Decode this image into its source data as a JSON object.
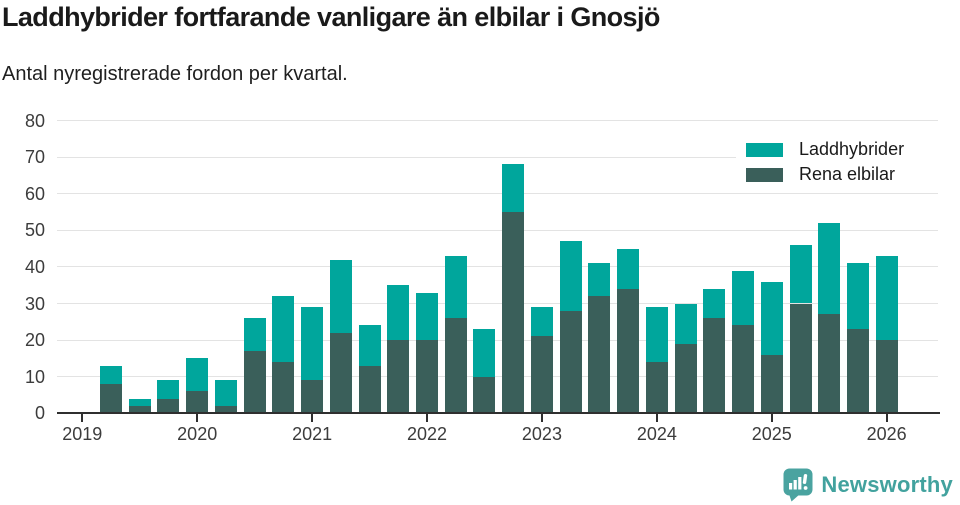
{
  "title": "Laddhybrider fortfarande vanligare än elbilar i Gnosjö",
  "subtitle": "Antal nyregistrerade fordon per kvartal.",
  "legend": [
    {
      "label": "Laddhybrider",
      "color": "#00a69c"
    },
    {
      "label": "Rena elbilar",
      "color": "#3a5f5a"
    }
  ],
  "footer": {
    "brand": "Newsworthy",
    "brand_color": "#42a29e",
    "logo_icon": "speech-bubble-bar-chart"
  },
  "colors": {
    "laddhybrider": "#00a69c",
    "rena_elbilar": "#3a5f5a",
    "gridline": "#e3e3e3",
    "axis": "#2f2f2f",
    "text": "#1a1a1a"
  },
  "chart_data": {
    "type": "bar",
    "stacked": true,
    "title": "Laddhybrider fortfarande vanligare än elbilar i Gnosjö",
    "subtitle": "Antal nyregistrerade fordon per kvartal.",
    "x": [
      "2019 Q2",
      "2019 Q3",
      "2019 Q4",
      "2020 Q1",
      "2020 Q2",
      "2020 Q3",
      "2020 Q4",
      "2021 Q1",
      "2021 Q2",
      "2021 Q3",
      "2021 Q4",
      "2022 Q1",
      "2022 Q2",
      "2022 Q3",
      "2022 Q4",
      "2023 Q1",
      "2023 Q2",
      "2023 Q3",
      "2023 Q4",
      "2024 Q1",
      "2024 Q2",
      "2024 Q3",
      "2024 Q4",
      "2025 Q1",
      "2025 Q2",
      "2025 Q3",
      "2025 Q4",
      "2026 Q1"
    ],
    "series": [
      {
        "name": "Rena elbilar",
        "color": "#3a5f5a",
        "values": [
          8,
          2,
          4,
          6,
          2,
          17,
          14,
          9,
          22,
          13,
          20,
          20,
          26,
          10,
          55,
          21,
          28,
          32,
          34,
          14,
          19,
          26,
          24,
          16,
          30,
          27,
          23,
          20
        ]
      },
      {
        "name": "Laddhybrider",
        "color": "#00a69c",
        "values": [
          5,
          2,
          5,
          9,
          7,
          9,
          18,
          20,
          20,
          11,
          15,
          13,
          17,
          13,
          13,
          8,
          19,
          9,
          11,
          15,
          11,
          8,
          15,
          20,
          16,
          25,
          18,
          23
        ]
      }
    ],
    "year_ticks": [
      "2019",
      "2020",
      "2021",
      "2022",
      "2023",
      "2024",
      "2025",
      "2026"
    ],
    "y_ticks": [
      0,
      10,
      20,
      30,
      40,
      50,
      60,
      70,
      80
    ],
    "ylim": [
      0,
      80
    ],
    "xlabel": "",
    "ylabel": "",
    "grid": true,
    "legend_position": "top-right"
  }
}
